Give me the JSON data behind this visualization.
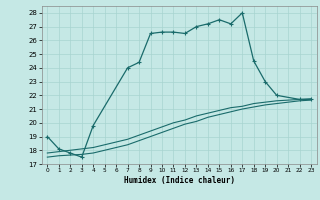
{
  "xlabel": "Humidex (Indice chaleur)",
  "bg_color": "#c5e8e5",
  "grid_color": "#a8d4d0",
  "line_color": "#1a6b6b",
  "xlim": [
    -0.5,
    23.5
  ],
  "ylim": [
    17,
    28.5
  ],
  "yticks": [
    17,
    18,
    19,
    20,
    21,
    22,
    23,
    24,
    25,
    26,
    27,
    28
  ],
  "xticks": [
    0,
    1,
    2,
    3,
    4,
    5,
    6,
    7,
    8,
    9,
    10,
    11,
    12,
    13,
    14,
    15,
    16,
    17,
    18,
    19,
    20,
    21,
    22,
    23
  ],
  "curve1_x": [
    0,
    1,
    2,
    3,
    4,
    7,
    8,
    9,
    10,
    11,
    12,
    13,
    14,
    15,
    16,
    17,
    18,
    19,
    20,
    22,
    23
  ],
  "curve1_y": [
    19.0,
    18.1,
    17.8,
    17.5,
    19.8,
    24.0,
    24.4,
    26.5,
    26.6,
    26.6,
    26.5,
    27.0,
    27.2,
    27.5,
    27.2,
    28.0,
    24.5,
    23.0,
    22.0,
    21.7,
    21.7
  ],
  "curve2_x": [
    0,
    1,
    2,
    3,
    4,
    5,
    6,
    7,
    8,
    9,
    10,
    11,
    12,
    13,
    14,
    15,
    16,
    17,
    18,
    19,
    20,
    21,
    22,
    23
  ],
  "curve2_y": [
    17.8,
    17.9,
    18.0,
    18.1,
    18.2,
    18.4,
    18.6,
    18.8,
    19.1,
    19.4,
    19.7,
    20.0,
    20.2,
    20.5,
    20.7,
    20.9,
    21.1,
    21.2,
    21.4,
    21.5,
    21.6,
    21.65,
    21.7,
    21.75
  ],
  "curve3_x": [
    0,
    1,
    2,
    3,
    4,
    5,
    6,
    7,
    8,
    9,
    10,
    11,
    12,
    13,
    14,
    15,
    16,
    17,
    18,
    19,
    20,
    21,
    22,
    23
  ],
  "curve3_y": [
    17.5,
    17.6,
    17.65,
    17.7,
    17.8,
    18.0,
    18.2,
    18.4,
    18.7,
    19.0,
    19.3,
    19.6,
    19.9,
    20.1,
    20.4,
    20.6,
    20.8,
    21.0,
    21.15,
    21.3,
    21.4,
    21.5,
    21.6,
    21.65
  ]
}
